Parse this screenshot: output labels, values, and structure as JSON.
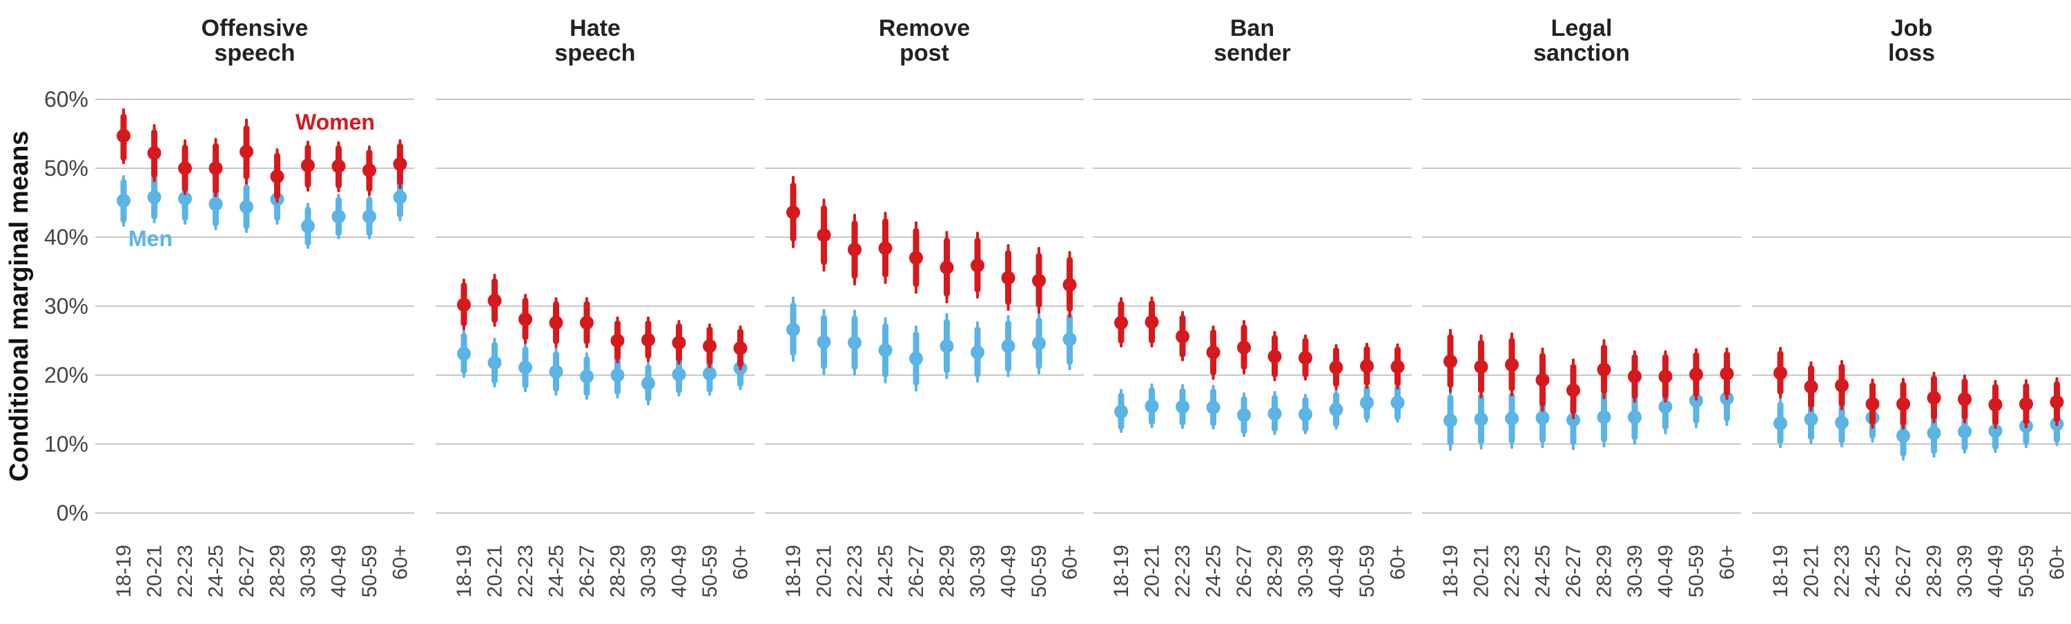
{
  "chart_data": {
    "type": "scatter",
    "ylabel": "Conditional marginal means",
    "ylim": [
      0,
      60
    ],
    "yticks": [
      0,
      10,
      20,
      30,
      40,
      50,
      60
    ],
    "ytick_labels": [
      "0%",
      "10%",
      "20%",
      "30%",
      "40%",
      "50%",
      "60%"
    ],
    "categories": [
      "18-19",
      "20-21",
      "22-23",
      "24-25",
      "26-27",
      "28-29",
      "30-39",
      "40-49",
      "50-59",
      "60+"
    ],
    "grid": true,
    "colors": {
      "Women": "#d7191c",
      "Men": "#5ab4e5"
    },
    "series_labels": {
      "Women": "Women",
      "Men": "Men"
    },
    "panels": [
      {
        "title_lines": [
          "Offensive",
          "speech"
        ],
        "women": [
          {
            "m": 54.7,
            "lo90": 51.5,
            "hi90": 57.5,
            "lo95": 50.8,
            "hi95": 58.5
          },
          {
            "m": 52.2,
            "lo90": 49.0,
            "hi90": 55.2,
            "lo95": 48.2,
            "hi95": 56.2
          },
          {
            "m": 50.0,
            "lo90": 47.0,
            "hi90": 53.0,
            "lo95": 46.3,
            "hi95": 54.0
          },
          {
            "m": 50.0,
            "lo90": 46.8,
            "hi90": 53.2,
            "lo95": 46.0,
            "hi95": 54.2
          },
          {
            "m": 52.4,
            "lo90": 48.8,
            "hi90": 55.8,
            "lo95": 47.8,
            "hi95": 57.0
          },
          {
            "m": 48.8,
            "lo90": 46.0,
            "hi90": 51.8,
            "lo95": 45.2,
            "hi95": 52.7
          },
          {
            "m": 50.4,
            "lo90": 47.6,
            "hi90": 53.0,
            "lo95": 46.8,
            "hi95": 53.8
          },
          {
            "m": 50.3,
            "lo90": 47.5,
            "hi90": 52.9,
            "lo95": 46.7,
            "hi95": 53.7
          },
          {
            "m": 49.7,
            "lo90": 47.0,
            "hi90": 52.3,
            "lo95": 46.2,
            "hi95": 53.1
          },
          {
            "m": 50.6,
            "lo90": 48.0,
            "hi90": 53.2,
            "lo95": 47.2,
            "hi95": 54.0
          }
        ],
        "men": [
          {
            "m": 45.3,
            "lo90": 42.5,
            "hi90": 48.0,
            "lo95": 41.7,
            "hi95": 48.8
          },
          {
            "m": 45.8,
            "lo90": 43.0,
            "hi90": 48.5,
            "lo95": 42.2,
            "hi95": 49.3
          },
          {
            "m": 45.6,
            "lo90": 42.8,
            "hi90": 48.3,
            "lo95": 42.0,
            "hi95": 49.1
          },
          {
            "m": 44.8,
            "lo90": 42.0,
            "hi90": 47.5,
            "lo95": 41.2,
            "hi95": 48.3
          },
          {
            "m": 44.4,
            "lo90": 41.6,
            "hi90": 47.2,
            "lo95": 40.8,
            "hi95": 48.0
          },
          {
            "m": 45.5,
            "lo90": 42.8,
            "hi90": 48.2,
            "lo95": 42.0,
            "hi95": 49.0
          },
          {
            "m": 41.6,
            "lo90": 39.2,
            "hi90": 44.0,
            "lo95": 38.5,
            "hi95": 44.8
          },
          {
            "m": 43.0,
            "lo90": 40.6,
            "hi90": 45.4,
            "lo95": 39.9,
            "hi95": 46.1
          },
          {
            "m": 43.0,
            "lo90": 40.6,
            "hi90": 45.4,
            "lo95": 39.9,
            "hi95": 46.1
          },
          {
            "m": 45.8,
            "lo90": 43.3,
            "hi90": 48.3,
            "lo95": 42.5,
            "hi95": 49.0
          }
        ]
      },
      {
        "title_lines": [
          "Hate",
          "speech"
        ],
        "women": [
          {
            "m": 30.2,
            "lo90": 27.5,
            "hi90": 33.0,
            "lo95": 26.7,
            "hi95": 33.8
          },
          {
            "m": 30.8,
            "lo90": 28.0,
            "hi90": 33.6,
            "lo95": 27.2,
            "hi95": 34.5
          },
          {
            "m": 28.1,
            "lo90": 25.5,
            "hi90": 30.8,
            "lo95": 24.7,
            "hi95": 31.6
          },
          {
            "m": 27.6,
            "lo90": 24.9,
            "hi90": 30.3,
            "lo95": 24.1,
            "hi95": 31.1
          },
          {
            "m": 27.6,
            "lo90": 24.9,
            "hi90": 30.3,
            "lo95": 24.1,
            "hi95": 31.1
          },
          {
            "m": 25.0,
            "lo90": 22.6,
            "hi90": 27.5,
            "lo95": 21.9,
            "hi95": 28.3
          },
          {
            "m": 25.1,
            "lo90": 22.8,
            "hi90": 27.5,
            "lo95": 22.1,
            "hi95": 28.3
          },
          {
            "m": 24.7,
            "lo90": 22.4,
            "hi90": 27.1,
            "lo95": 21.7,
            "hi95": 27.8
          },
          {
            "m": 24.2,
            "lo90": 21.9,
            "hi90": 26.6,
            "lo95": 21.2,
            "hi95": 27.3
          },
          {
            "m": 23.9,
            "lo90": 21.6,
            "hi90": 26.3,
            "lo95": 20.9,
            "hi95": 27.0
          }
        ],
        "men": [
          {
            "m": 23.1,
            "lo90": 20.6,
            "hi90": 25.7,
            "lo95": 19.8,
            "hi95": 26.5
          },
          {
            "m": 21.8,
            "lo90": 19.2,
            "hi90": 24.4,
            "lo95": 18.4,
            "hi95": 25.2
          },
          {
            "m": 21.1,
            "lo90": 18.5,
            "hi90": 23.7,
            "lo95": 17.7,
            "hi95": 24.5
          },
          {
            "m": 20.5,
            "lo90": 18.0,
            "hi90": 23.0,
            "lo95": 17.2,
            "hi95": 23.8
          },
          {
            "m": 19.8,
            "lo90": 17.4,
            "hi90": 22.3,
            "lo95": 16.6,
            "hi95": 23.1
          },
          {
            "m": 20.0,
            "lo90": 17.6,
            "hi90": 22.4,
            "lo95": 16.8,
            "hi95": 23.2
          },
          {
            "m": 18.8,
            "lo90": 16.6,
            "hi90": 21.1,
            "lo95": 15.8,
            "hi95": 21.9
          },
          {
            "m": 20.1,
            "lo90": 17.8,
            "hi90": 22.3,
            "lo95": 17.1,
            "hi95": 23.1
          },
          {
            "m": 20.2,
            "lo90": 17.9,
            "hi90": 22.5,
            "lo95": 17.2,
            "hi95": 23.2
          },
          {
            "m": 21.0,
            "lo90": 18.7,
            "hi90": 23.3,
            "lo95": 18.0,
            "hi95": 24.0
          }
        ]
      },
      {
        "title_lines": [
          "Remove",
          "post"
        ],
        "women": [
          {
            "m": 43.6,
            "lo90": 39.8,
            "hi90": 47.5,
            "lo95": 38.6,
            "hi95": 48.7
          },
          {
            "m": 40.3,
            "lo90": 36.4,
            "hi90": 44.2,
            "lo95": 35.2,
            "hi95": 45.4
          },
          {
            "m": 38.2,
            "lo90": 34.4,
            "hi90": 42.0,
            "lo95": 33.2,
            "hi95": 43.2
          },
          {
            "m": 38.4,
            "lo90": 34.6,
            "hi90": 42.3,
            "lo95": 33.4,
            "hi95": 43.5
          },
          {
            "m": 37.0,
            "lo90": 33.2,
            "hi90": 40.9,
            "lo95": 32.0,
            "hi95": 42.1
          },
          {
            "m": 35.6,
            "lo90": 31.8,
            "hi90": 39.5,
            "lo95": 30.6,
            "hi95": 40.7
          },
          {
            "m": 35.9,
            "lo90": 32.4,
            "hi90": 39.5,
            "lo95": 31.3,
            "hi95": 40.6
          },
          {
            "m": 34.1,
            "lo90": 30.6,
            "hi90": 37.7,
            "lo95": 29.5,
            "hi95": 38.8
          },
          {
            "m": 33.7,
            "lo90": 30.2,
            "hi90": 37.3,
            "lo95": 29.1,
            "hi95": 38.4
          },
          {
            "m": 33.1,
            "lo90": 29.6,
            "hi90": 36.7,
            "lo95": 28.5,
            "hi95": 37.8
          }
        ],
        "men": [
          {
            "m": 26.6,
            "lo90": 23.2,
            "hi90": 30.1,
            "lo95": 22.1,
            "hi95": 31.2
          },
          {
            "m": 24.8,
            "lo90": 21.3,
            "hi90": 28.3,
            "lo95": 20.2,
            "hi95": 29.4
          },
          {
            "m": 24.7,
            "lo90": 21.2,
            "hi90": 28.2,
            "lo95": 20.1,
            "hi95": 29.3
          },
          {
            "m": 23.6,
            "lo90": 20.1,
            "hi90": 27.1,
            "lo95": 19.0,
            "hi95": 28.2
          },
          {
            "m": 22.4,
            "lo90": 18.9,
            "hi90": 25.9,
            "lo95": 17.8,
            "hi95": 27.0
          },
          {
            "m": 24.2,
            "lo90": 20.7,
            "hi90": 27.7,
            "lo95": 19.6,
            "hi95": 28.8
          },
          {
            "m": 23.3,
            "lo90": 20.1,
            "hi90": 26.6,
            "lo95": 19.1,
            "hi95": 27.6
          },
          {
            "m": 24.2,
            "lo90": 20.9,
            "hi90": 27.5,
            "lo95": 19.9,
            "hi95": 28.5
          },
          {
            "m": 24.6,
            "lo90": 21.3,
            "hi90": 27.9,
            "lo95": 20.3,
            "hi95": 28.9
          },
          {
            "m": 25.2,
            "lo90": 21.9,
            "hi90": 28.5,
            "lo95": 20.9,
            "hi95": 29.5
          }
        ]
      },
      {
        "title_lines": [
          "Ban",
          "sender"
        ],
        "women": [
          {
            "m": 27.6,
            "lo90": 25.0,
            "hi90": 30.3,
            "lo95": 24.2,
            "hi95": 31.1
          },
          {
            "m": 27.7,
            "lo90": 25.0,
            "hi90": 30.4,
            "lo95": 24.2,
            "hi95": 31.2
          },
          {
            "m": 25.6,
            "lo90": 23.0,
            "hi90": 28.3,
            "lo95": 22.2,
            "hi95": 29.1
          },
          {
            "m": 23.3,
            "lo90": 20.4,
            "hi90": 26.2,
            "lo95": 19.5,
            "hi95": 27.0
          },
          {
            "m": 24.0,
            "lo90": 21.2,
            "hi90": 26.9,
            "lo95": 20.3,
            "hi95": 27.8
          },
          {
            "m": 22.7,
            "lo90": 20.1,
            "hi90": 25.4,
            "lo95": 19.3,
            "hi95": 26.2
          },
          {
            "m": 22.5,
            "lo90": 20.1,
            "hi90": 25.0,
            "lo95": 19.4,
            "hi95": 25.7
          },
          {
            "m": 21.1,
            "lo90": 18.7,
            "hi90": 23.6,
            "lo95": 18.0,
            "hi95": 24.3
          },
          {
            "m": 21.3,
            "lo90": 18.9,
            "hi90": 23.8,
            "lo95": 18.2,
            "hi95": 24.5
          },
          {
            "m": 21.2,
            "lo90": 18.8,
            "hi90": 23.7,
            "lo95": 18.1,
            "hi95": 24.4
          }
        ],
        "men": [
          {
            "m": 14.7,
            "lo90": 12.5,
            "hi90": 17.0,
            "lo95": 11.8,
            "hi95": 17.8
          },
          {
            "m": 15.5,
            "lo90": 13.2,
            "hi90": 17.8,
            "lo95": 12.5,
            "hi95": 18.6
          },
          {
            "m": 15.4,
            "lo90": 13.1,
            "hi90": 17.7,
            "lo95": 12.4,
            "hi95": 18.5
          },
          {
            "m": 15.3,
            "lo90": 13.0,
            "hi90": 17.6,
            "lo95": 12.3,
            "hi95": 18.4
          },
          {
            "m": 14.2,
            "lo90": 11.9,
            "hi90": 16.5,
            "lo95": 11.2,
            "hi95": 17.3
          },
          {
            "m": 14.4,
            "lo90": 12.2,
            "hi90": 16.7,
            "lo95": 11.5,
            "hi95": 17.5
          },
          {
            "m": 14.3,
            "lo90": 12.2,
            "hi90": 16.4,
            "lo95": 11.6,
            "hi95": 17.1
          },
          {
            "m": 15.0,
            "lo90": 12.9,
            "hi90": 17.1,
            "lo95": 12.3,
            "hi95": 17.8
          },
          {
            "m": 16.0,
            "lo90": 13.9,
            "hi90": 18.1,
            "lo95": 13.3,
            "hi95": 18.8
          },
          {
            "m": 16.0,
            "lo90": 13.9,
            "hi90": 18.1,
            "lo95": 13.3,
            "hi95": 18.8
          }
        ]
      },
      {
        "title_lines": [
          "Legal",
          "sanction"
        ],
        "women": [
          {
            "m": 22.0,
            "lo90": 18.6,
            "hi90": 25.5,
            "lo95": 17.6,
            "hi95": 26.5
          },
          {
            "m": 21.2,
            "lo90": 17.8,
            "hi90": 24.7,
            "lo95": 16.8,
            "hi95": 25.7
          },
          {
            "m": 21.5,
            "lo90": 18.1,
            "hi90": 25.0,
            "lo95": 17.1,
            "hi95": 26.0
          },
          {
            "m": 19.3,
            "lo90": 15.9,
            "hi90": 22.8,
            "lo95": 14.9,
            "hi95": 23.8
          },
          {
            "m": 17.8,
            "lo90": 14.8,
            "hi90": 21.2,
            "lo95": 13.8,
            "hi95": 22.2
          },
          {
            "m": 20.8,
            "lo90": 17.7,
            "hi90": 24.0,
            "lo95": 16.7,
            "hi95": 25.0
          },
          {
            "m": 19.8,
            "lo90": 17.0,
            "hi90": 22.6,
            "lo95": 16.2,
            "hi95": 23.4
          },
          {
            "m": 19.8,
            "lo90": 17.0,
            "hi90": 22.6,
            "lo95": 16.2,
            "hi95": 23.4
          },
          {
            "m": 20.1,
            "lo90": 17.3,
            "hi90": 22.9,
            "lo95": 16.5,
            "hi95": 23.7
          },
          {
            "m": 20.2,
            "lo90": 17.4,
            "hi90": 23.0,
            "lo95": 16.6,
            "hi95": 23.8
          }
        ],
        "men": [
          {
            "m": 13.4,
            "lo90": 10.2,
            "hi90": 16.7,
            "lo95": 9.2,
            "hi95": 17.7
          },
          {
            "m": 13.6,
            "lo90": 10.4,
            "hi90": 16.9,
            "lo95": 9.4,
            "hi95": 17.9
          },
          {
            "m": 13.7,
            "lo90": 10.5,
            "hi90": 17.0,
            "lo95": 9.5,
            "hi95": 18.0
          },
          {
            "m": 13.8,
            "lo90": 10.6,
            "hi90": 17.1,
            "lo95": 9.6,
            "hi95": 18.1
          },
          {
            "m": 13.5,
            "lo90": 10.3,
            "hi90": 16.8,
            "lo95": 9.3,
            "hi95": 17.8
          },
          {
            "m": 13.9,
            "lo90": 10.7,
            "hi90": 17.2,
            "lo95": 9.7,
            "hi95": 18.2
          },
          {
            "m": 13.9,
            "lo90": 11.0,
            "hi90": 16.9,
            "lo95": 10.1,
            "hi95": 17.8
          },
          {
            "m": 15.4,
            "lo90": 12.5,
            "hi90": 18.4,
            "lo95": 11.6,
            "hi95": 19.3
          },
          {
            "m": 16.3,
            "lo90": 13.4,
            "hi90": 19.3,
            "lo95": 12.5,
            "hi95": 20.2
          },
          {
            "m": 16.6,
            "lo90": 13.7,
            "hi90": 19.6,
            "lo95": 12.8,
            "hi95": 20.5
          }
        ]
      },
      {
        "title_lines": [
          "Job",
          "loss"
        ],
        "women": [
          {
            "m": 20.3,
            "lo90": 17.6,
            "hi90": 23.1,
            "lo95": 16.8,
            "hi95": 23.9
          },
          {
            "m": 18.3,
            "lo90": 15.7,
            "hi90": 21.0,
            "lo95": 14.9,
            "hi95": 21.8
          },
          {
            "m": 18.5,
            "lo90": 15.9,
            "hi90": 21.2,
            "lo95": 15.1,
            "hi95": 22.0
          },
          {
            "m": 15.8,
            "lo90": 13.2,
            "hi90": 18.5,
            "lo95": 12.4,
            "hi95": 19.3
          },
          {
            "m": 15.8,
            "lo90": 13.1,
            "hi90": 18.6,
            "lo95": 12.3,
            "hi95": 19.4
          },
          {
            "m": 16.7,
            "lo90": 14.0,
            "hi90": 19.5,
            "lo95": 13.2,
            "hi95": 20.3
          },
          {
            "m": 16.5,
            "lo90": 14.0,
            "hi90": 19.1,
            "lo95": 13.2,
            "hi95": 19.9
          },
          {
            "m": 15.7,
            "lo90": 13.2,
            "hi90": 18.3,
            "lo95": 12.4,
            "hi95": 19.1
          },
          {
            "m": 15.8,
            "lo90": 13.3,
            "hi90": 18.4,
            "lo95": 12.5,
            "hi95": 19.2
          },
          {
            "m": 16.1,
            "lo90": 13.6,
            "hi90": 18.7,
            "lo95": 12.8,
            "hi95": 19.5
          }
        ],
        "men": [
          {
            "m": 13.0,
            "lo90": 10.4,
            "hi90": 15.7,
            "lo95": 9.6,
            "hi95": 16.5
          },
          {
            "m": 13.6,
            "lo90": 11.0,
            "hi90": 16.3,
            "lo95": 10.2,
            "hi95": 17.1
          },
          {
            "m": 13.1,
            "lo90": 10.5,
            "hi90": 15.8,
            "lo95": 9.7,
            "hi95": 16.6
          },
          {
            "m": 13.8,
            "lo90": 11.2,
            "hi90": 16.5,
            "lo95": 10.4,
            "hi95": 17.3
          },
          {
            "m": 11.2,
            "lo90": 8.6,
            "hi90": 13.9,
            "lo95": 7.8,
            "hi95": 14.7
          },
          {
            "m": 11.6,
            "lo90": 9.0,
            "hi90": 14.3,
            "lo95": 8.2,
            "hi95": 15.1
          },
          {
            "m": 11.8,
            "lo90": 9.5,
            "hi90": 14.2,
            "lo95": 8.8,
            "hi95": 15.0
          },
          {
            "m": 11.9,
            "lo90": 9.6,
            "hi90": 14.3,
            "lo95": 8.9,
            "hi95": 15.1
          },
          {
            "m": 12.6,
            "lo90": 10.3,
            "hi90": 15.0,
            "lo95": 9.6,
            "hi95": 15.8
          },
          {
            "m": 12.9,
            "lo90": 10.6,
            "hi90": 15.3,
            "lo95": 9.9,
            "hi95": 16.1
          }
        ]
      }
    ]
  }
}
